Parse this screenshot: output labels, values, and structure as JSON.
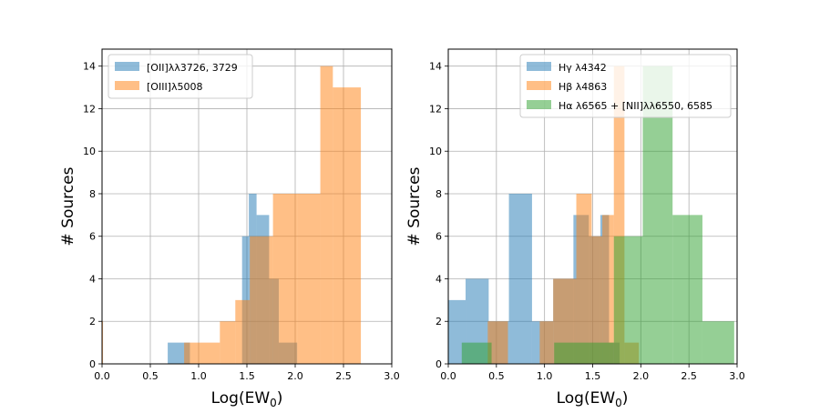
{
  "chart_data": [
    {
      "type": "histogram",
      "panel": "left",
      "xlabel": "Log(EW",
      "xlabel_sub": "0",
      "xlabel_close": ")",
      "ylabel": "# Sources",
      "xlim": [
        0,
        3.0
      ],
      "ylim": [
        0,
        14.8
      ],
      "xticks": [
        "0.0",
        "0.5",
        "1.0",
        "1.5",
        "2.0",
        "2.5",
        "3.0"
      ],
      "yticks": [
        "0",
        "2",
        "4",
        "6",
        "8",
        "10",
        "12",
        "14"
      ],
      "grid": true,
      "legend_position": "top-left",
      "series": [
        {
          "name": "[OII]λλ3726, 3729",
          "color": "#1f77b4",
          "bins": [
            [
              0.68,
              0.91,
              1
            ],
            [
              1.45,
              1.52,
              6
            ],
            [
              1.52,
              1.6,
              8
            ],
            [
              1.6,
              1.73,
              7
            ],
            [
              1.73,
              1.83,
              4
            ],
            [
              1.83,
              2.02,
              1
            ]
          ]
        },
        {
          "name": "[OIII]λ5008",
          "color": "#ff7f0e",
          "bins": [
            [
              0.0,
              0.01,
              2
            ],
            [
              0.85,
              1.22,
              1
            ],
            [
              1.22,
              1.38,
              2
            ],
            [
              1.38,
              1.53,
              3
            ],
            [
              1.53,
              1.77,
              6
            ],
            [
              1.77,
              2.02,
              8
            ],
            [
              2.02,
              2.26,
              8
            ],
            [
              2.26,
              2.39,
              14
            ],
            [
              2.39,
              2.68,
              13
            ]
          ]
        }
      ]
    },
    {
      "type": "histogram",
      "panel": "right",
      "xlabel": "Log(EW",
      "xlabel_sub": "0",
      "xlabel_close": ")",
      "ylabel": "# Sources",
      "xlim": [
        0,
        3.0
      ],
      "ylim": [
        0,
        14.8
      ],
      "xticks": [
        "0.0",
        "0.5",
        "1.0",
        "1.5",
        "2.0",
        "2.5",
        "3.0"
      ],
      "yticks": [
        "0",
        "2",
        "4",
        "6",
        "8",
        "10",
        "12",
        "14"
      ],
      "grid": true,
      "legend_position": "top-right",
      "series": [
        {
          "name": "Hγ λ4342",
          "color": "#1f77b4",
          "bins": [
            [
              0.0,
              0.18,
              3
            ],
            [
              0.18,
              0.42,
              4
            ],
            [
              0.42,
              0.63,
              2
            ],
            [
              0.63,
              0.87,
              8
            ],
            [
              0.87,
              1.09,
              2
            ],
            [
              1.09,
              1.3,
              4
            ],
            [
              1.3,
              1.46,
              7
            ],
            [
              1.46,
              1.58,
              6
            ],
            [
              1.58,
              1.67,
              7
            ],
            [
              1.67,
              1.78,
              1
            ]
          ]
        },
        {
          "name": "Hβ λ4863",
          "color": "#ff7f0e",
          "bins": [
            [
              0.41,
              0.62,
              2
            ],
            [
              0.95,
              1.09,
              2
            ],
            [
              1.09,
              1.33,
              4
            ],
            [
              1.33,
              1.49,
              8
            ],
            [
              1.49,
              1.6,
              6
            ],
            [
              1.6,
              1.72,
              7
            ],
            [
              1.72,
              1.83,
              14
            ],
            [
              1.83,
              1.98,
              1
            ]
          ]
        },
        {
          "name": "Hα λ6565 + [NII]λλ6550, 6585",
          "color": "#2ca02c",
          "bins": [
            [
              0.14,
              0.45,
              1
            ],
            [
              1.1,
              1.72,
              1
            ],
            [
              1.72,
              2.02,
              6
            ],
            [
              2.02,
              2.33,
              14
            ],
            [
              2.33,
              2.64,
              7
            ],
            [
              2.64,
              2.97,
              2
            ]
          ]
        }
      ]
    }
  ]
}
